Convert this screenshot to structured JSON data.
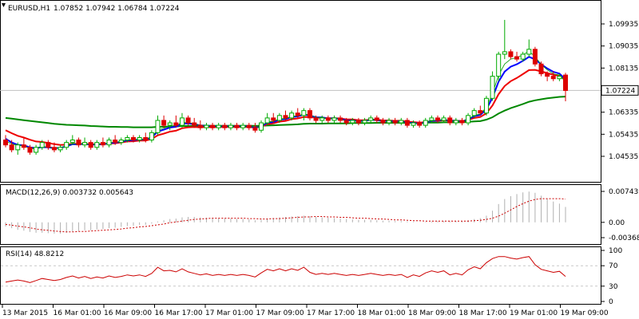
{
  "header": {
    "symbol": "EURUSD,H1",
    "ohlc": "1.07852 1.07942 1.06784 1.07224"
  },
  "price_axis": {
    "ticks": [
      "1.09935",
      "1.09035",
      "1.08135",
      "1.07224",
      "1.06335",
      "1.05435",
      "1.04535"
    ],
    "current_label": "1.07224"
  },
  "macd": {
    "label": "MACD(12,26,9) 0.003732 0.005643",
    "ticks": [
      "0.007439",
      "0.00",
      "-0.003682"
    ]
  },
  "rsi": {
    "label": "RSI(14) 48.8212",
    "ticks": [
      "100",
      "70",
      "30",
      "0"
    ]
  },
  "time_axis": {
    "labels": [
      "13 Mar 2015",
      "16 Mar 01:00",
      "16 Mar 09:00",
      "16 Mar 17:00",
      "17 Mar 01:00",
      "17 Mar 09:00",
      "17 Mar 17:00",
      "18 Mar 01:00",
      "18 Mar 09:00",
      "18 Mar 17:00",
      "19 Mar 01:00",
      "19 Mar 09:00"
    ]
  },
  "colors": {
    "bull": "#00aa00",
    "bear": "#dd0000",
    "ma_fast": "#0000ff",
    "ma_mid": "#ee0000",
    "ma_slow": "#008800",
    "ma_thin": "#009900",
    "rsi_line": "#cc0000",
    "macd_signal": "#cc0000",
    "macd_hist": "#b0b0b0",
    "grid": "#c8c8c8"
  },
  "chart_data": {
    "type": "candlestick",
    "symbol": "EURUSD",
    "timeframe": "H1",
    "price_range": [
      1.0445,
      1.1035
    ],
    "candles": [
      [
        1.052,
        1.054,
        1.049,
        1.05
      ],
      [
        1.05,
        1.052,
        1.047,
        1.048
      ],
      [
        1.048,
        1.051,
        1.046,
        1.05
      ],
      [
        1.05,
        1.053,
        1.048,
        1.049
      ],
      [
        1.049,
        1.05,
        1.046,
        1.047
      ],
      [
        1.047,
        1.05,
        1.046,
        1.049
      ],
      [
        1.049,
        1.052,
        1.048,
        1.051
      ],
      [
        1.051,
        1.052,
        1.048,
        1.049
      ],
      [
        1.049,
        1.051,
        1.047,
        1.048
      ],
      [
        1.048,
        1.05,
        1.047,
        1.049
      ],
      [
        1.049,
        1.052,
        1.048,
        1.051
      ],
      [
        1.051,
        1.054,
        1.05,
        1.052
      ],
      [
        1.052,
        1.053,
        1.049,
        1.05
      ],
      [
        1.05,
        1.053,
        1.049,
        1.051
      ],
      [
        1.051,
        1.052,
        1.048,
        1.049
      ],
      [
        1.049,
        1.052,
        1.048,
        1.051
      ],
      [
        1.051,
        1.053,
        1.049,
        1.05
      ],
      [
        1.05,
        1.053,
        1.049,
        1.052
      ],
      [
        1.052,
        1.054,
        1.05,
        1.051
      ],
      [
        1.051,
        1.053,
        1.05,
        1.052
      ],
      [
        1.052,
        1.054,
        1.051,
        1.053
      ],
      [
        1.053,
        1.054,
        1.051,
        1.052
      ],
      [
        1.052,
        1.054,
        1.051,
        1.053
      ],
      [
        1.053,
        1.055,
        1.051,
        1.052
      ],
      [
        1.052,
        1.056,
        1.051,
        1.055
      ],
      [
        1.055,
        1.062,
        1.054,
        1.06
      ],
      [
        1.06,
        1.062,
        1.057,
        1.058
      ],
      [
        1.058,
        1.06,
        1.056,
        1.059
      ],
      [
        1.059,
        1.062,
        1.057,
        1.058
      ],
      [
        1.058,
        1.063,
        1.057,
        1.061
      ],
      [
        1.061,
        1.062,
        1.058,
        1.059
      ],
      [
        1.059,
        1.061,
        1.057,
        1.058
      ],
      [
        1.058,
        1.06,
        1.056,
        1.057
      ],
      [
        1.057,
        1.059,
        1.056,
        1.058
      ],
      [
        1.058,
        1.059,
        1.056,
        1.057
      ],
      [
        1.057,
        1.059,
        1.056,
        1.058
      ],
      [
        1.058,
        1.059,
        1.056,
        1.057
      ],
      [
        1.057,
        1.059,
        1.056,
        1.058
      ],
      [
        1.058,
        1.059,
        1.056,
        1.057
      ],
      [
        1.057,
        1.059,
        1.056,
        1.058
      ],
      [
        1.058,
        1.059,
        1.056,
        1.057
      ],
      [
        1.057,
        1.059,
        1.055,
        1.056
      ],
      [
        1.056,
        1.06,
        1.055,
        1.059
      ],
      [
        1.059,
        1.063,
        1.058,
        1.061
      ],
      [
        1.061,
        1.063,
        1.059,
        1.06
      ],
      [
        1.06,
        1.063,
        1.059,
        1.062
      ],
      [
        1.062,
        1.064,
        1.06,
        1.061
      ],
      [
        1.061,
        1.064,
        1.06,
        1.063
      ],
      [
        1.063,
        1.065,
        1.061,
        1.062
      ],
      [
        1.062,
        1.065,
        1.06,
        1.064
      ],
      [
        1.064,
        1.065,
        1.06,
        1.061
      ],
      [
        1.061,
        1.062,
        1.059,
        1.06
      ],
      [
        1.06,
        1.062,
        1.059,
        1.061
      ],
      [
        1.061,
        1.062,
        1.059,
        1.06
      ],
      [
        1.06,
        1.062,
        1.059,
        1.061
      ],
      [
        1.061,
        1.062,
        1.059,
        1.06
      ],
      [
        1.06,
        1.061,
        1.058,
        1.059
      ],
      [
        1.059,
        1.061,
        1.058,
        1.06
      ],
      [
        1.06,
        1.061,
        1.058,
        1.059
      ],
      [
        1.059,
        1.061,
        1.058,
        1.06
      ],
      [
        1.06,
        1.062,
        1.059,
        1.061
      ],
      [
        1.061,
        1.062,
        1.059,
        1.06
      ],
      [
        1.06,
        1.061,
        1.058,
        1.059
      ],
      [
        1.059,
        1.061,
        1.058,
        1.06
      ],
      [
        1.06,
        1.061,
        1.058,
        1.059
      ],
      [
        1.059,
        1.061,
        1.058,
        1.06
      ],
      [
        1.06,
        1.061,
        1.057,
        1.058
      ],
      [
        1.058,
        1.06,
        1.057,
        1.059
      ],
      [
        1.059,
        1.06,
        1.057,
        1.058
      ],
      [
        1.058,
        1.061,
        1.057,
        1.06
      ],
      [
        1.06,
        1.062,
        1.059,
        1.061
      ],
      [
        1.061,
        1.062,
        1.059,
        1.06
      ],
      [
        1.06,
        1.062,
        1.059,
        1.061
      ],
      [
        1.061,
        1.062,
        1.058,
        1.059
      ],
      [
        1.059,
        1.061,
        1.058,
        1.06
      ],
      [
        1.06,
        1.061,
        1.058,
        1.059
      ],
      [
        1.059,
        1.063,
        1.058,
        1.062
      ],
      [
        1.062,
        1.065,
        1.061,
        1.064
      ],
      [
        1.064,
        1.066,
        1.062,
        1.063
      ],
      [
        1.063,
        1.07,
        1.062,
        1.069
      ],
      [
        1.069,
        1.08,
        1.068,
        1.078
      ],
      [
        1.078,
        1.088,
        1.076,
        1.087
      ],
      [
        1.087,
        1.101,
        1.085,
        1.088
      ],
      [
        1.088,
        1.089,
        1.085,
        1.086
      ],
      [
        1.086,
        1.088,
        1.084,
        1.085
      ],
      [
        1.085,
        1.088,
        1.084,
        1.087
      ],
      [
        1.087,
        1.093,
        1.086,
        1.089
      ],
      [
        1.089,
        1.09,
        1.082,
        1.083
      ],
      [
        1.083,
        1.084,
        1.078,
        1.079
      ],
      [
        1.079,
        1.08,
        1.076,
        1.078
      ],
      [
        1.078,
        1.08,
        1.076,
        1.077
      ],
      [
        1.077,
        1.079,
        1.076,
        1.078
      ],
      [
        1.0785,
        1.0794,
        1.0678,
        1.0722
      ]
    ],
    "ma_fast": [
      1.0525,
      1.051,
      1.05,
      1.0498,
      1.049,
      1.0487,
      1.0491,
      1.049,
      1.0487,
      1.0488,
      1.0494,
      1.0503,
      1.0502,
      1.0505,
      1.05,
      1.0503,
      1.0502,
      1.0508,
      1.0509,
      1.0513,
      1.0519,
      1.0519,
      1.0523,
      1.0521,
      1.0531,
      1.0554,
      1.0562,
      1.0571,
      1.0574,
      1.0586,
      1.0588,
      1.0585,
      1.0579,
      1.0579,
      1.0576,
      1.0577,
      1.0575,
      1.0577,
      1.0575,
      1.0577,
      1.0575,
      1.0569,
      1.0576,
      1.059,
      1.0593,
      1.0603,
      1.0605,
      1.0614,
      1.0616,
      1.0624,
      1.062,
      1.0613,
      1.0612,
      1.0608,
      1.0609,
      1.0606,
      1.06,
      1.06,
      1.0597,
      1.0598,
      1.0602,
      1.0601,
      1.0597,
      1.0598,
      1.0595,
      1.0597,
      1.059,
      1.059,
      1.0587,
      1.0591,
      1.0598,
      1.0599,
      1.0603,
      1.0598,
      1.0599,
      1.0596,
      1.0604,
      1.0617,
      1.0622,
      1.0645,
      1.0693,
      1.0758,
      1.0799,
      1.0819,
      1.0829,
      1.0843,
      1.0859,
      1.0849,
      1.0829,
      1.0812,
      1.0798,
      1.0791,
      1.0768
    ],
    "ma_mid": [
      1.056,
      1.0548,
      1.0537,
      1.053,
      1.0521,
      1.0514,
      1.0512,
      1.0508,
      1.0503,
      1.05,
      1.0501,
      1.0505,
      1.0504,
      1.0505,
      1.0502,
      1.0503,
      1.0503,
      1.0506,
      1.0507,
      1.051,
      1.0514,
      1.0515,
      1.0518,
      1.0518,
      1.0524,
      1.0539,
      1.0546,
      1.0554,
      1.0558,
      1.0568,
      1.0572,
      1.0573,
      1.0572,
      1.0573,
      1.0572,
      1.0573,
      1.0573,
      1.0574,
      1.0573,
      1.0574,
      1.0573,
      1.0571,
      1.0575,
      1.0584,
      1.0588,
      1.0595,
      1.0598,
      1.0605,
      1.0608,
      1.0614,
      1.0614,
      1.0611,
      1.0611,
      1.0609,
      1.0609,
      1.0608,
      1.0604,
      1.0604,
      1.0601,
      1.0601,
      1.0603,
      1.0603,
      1.06,
      1.06,
      1.0598,
      1.0599,
      1.0594,
      1.0593,
      1.0591,
      1.0593,
      1.0597,
      1.0598,
      1.0601,
      1.0599,
      1.0599,
      1.0597,
      1.0602,
      1.061,
      1.0614,
      1.0629,
      1.0661,
      1.0707,
      1.074,
      1.076,
      1.0773,
      1.0789,
      1.0805,
      1.0806,
      1.08,
      1.0793,
      1.0786,
      1.0782,
      1.0768
    ],
    "ma_slow": [
      1.061,
      1.0607,
      1.0604,
      1.0601,
      1.0598,
      1.0595,
      1.0592,
      1.0589,
      1.0586,
      1.0584,
      1.0582,
      1.0581,
      1.058,
      1.0579,
      1.0577,
      1.0576,
      1.0575,
      1.0574,
      1.0574,
      1.0573,
      1.0573,
      1.0572,
      1.0572,
      1.0572,
      1.0572,
      1.0574,
      1.0574,
      1.0575,
      1.0575,
      1.0577,
      1.0577,
      1.0578,
      1.0578,
      1.0578,
      1.0578,
      1.0578,
      1.0578,
      1.0578,
      1.0578,
      1.0578,
      1.0578,
      1.0578,
      1.0578,
      1.0579,
      1.058,
      1.0581,
      1.0582,
      1.0583,
      1.0584,
      1.0586,
      1.0587,
      1.0587,
      1.0587,
      1.0588,
      1.0588,
      1.0588,
      1.0588,
      1.0589,
      1.0589,
      1.0589,
      1.0589,
      1.059,
      1.059,
      1.059,
      1.059,
      1.059,
      1.059,
      1.059,
      1.059,
      1.0591,
      1.0591,
      1.0591,
      1.0592,
      1.0592,
      1.0592,
      1.0593,
      1.0594,
      1.0596,
      1.0597,
      1.0603,
      1.0613,
      1.0628,
      1.064,
      1.065,
      1.0658,
      1.0667,
      1.0676,
      1.0682,
      1.0686,
      1.069,
      1.0693,
      1.0696,
      1.0697
    ],
    "ma_thin": [
      1.0515,
      1.0505,
      1.0497,
      1.0496,
      1.0485,
      1.0485,
      1.0493,
      1.0491,
      1.0486,
      1.0488,
      1.0496,
      1.0506,
      1.0503,
      1.0507,
      1.05,
      1.0505,
      1.0503,
      1.051,
      1.051,
      1.0514,
      1.0521,
      1.052,
      1.0525,
      1.0522,
      1.0534,
      1.0561,
      1.0568,
      1.0577,
      1.0579,
      1.0591,
      1.0591,
      1.0587,
      1.058,
      1.058,
      1.0576,
      1.0578,
      1.0575,
      1.0577,
      1.0575,
      1.0577,
      1.0575,
      1.0568,
      1.0577,
      1.0594,
      1.0596,
      1.0607,
      1.0607,
      1.0617,
      1.0618,
      1.0627,
      1.0621,
      1.0613,
      1.0612,
      1.0607,
      1.0609,
      1.0605,
      1.0599,
      1.06,
      1.0596,
      1.0598,
      1.0603,
      1.0601,
      1.0597,
      1.0598,
      1.0594,
      1.0597,
      1.0589,
      1.059,
      1.0586,
      1.0591,
      1.0599,
      1.06,
      1.0604,
      1.0597,
      1.0599,
      1.0595,
      1.0605,
      1.0621,
      1.0626,
      1.0653,
      1.071,
      1.0784,
      1.083,
      1.085,
      1.0856,
      1.0868,
      1.0882,
      1.086,
      1.0828,
      1.0806,
      1.079,
      1.0785,
      1.0757
    ],
    "macd": {
      "range": [
        -0.003682,
        0.007439
      ],
      "histogram": [
        -0.001,
        -0.0014,
        -0.0018,
        -0.002,
        -0.0023,
        -0.0025,
        -0.0025,
        -0.0026,
        -0.0027,
        -0.0027,
        -0.0025,
        -0.0022,
        -0.0021,
        -0.0019,
        -0.0019,
        -0.0017,
        -0.0016,
        -0.0014,
        -0.0013,
        -0.0011,
        -0.0009,
        -0.0008,
        -0.0006,
        -0.0006,
        -0.0003,
        0.0002,
        0.0005,
        0.0008,
        0.0009,
        0.0012,
        0.0013,
        0.0013,
        0.0012,
        0.0011,
        0.001,
        0.001,
        0.0009,
        0.0009,
        0.0008,
        0.0008,
        0.0007,
        0.0005,
        0.0006,
        0.0009,
        0.001,
        0.0012,
        0.0013,
        0.0014,
        0.0015,
        0.0016,
        0.0015,
        0.0013,
        0.0012,
        0.0011,
        0.001,
        0.0009,
        0.0008,
        0.0007,
        0.0006,
        0.0006,
        0.0006,
        0.0005,
        0.0004,
        0.0004,
        0.0003,
        0.0003,
        0.0002,
        0.0001,
        0.0,
        0.0001,
        0.0002,
        0.0003,
        0.0003,
        0.0003,
        0.0003,
        0.0003,
        0.0005,
        0.0008,
        0.001,
        0.0016,
        0.0028,
        0.0044,
        0.0056,
        0.0063,
        0.0068,
        0.0072,
        0.0074,
        0.0071,
        0.0064,
        0.0056,
        0.005,
        0.0045,
        0.0037
      ],
      "signal": [
        -0.0005,
        -0.0007,
        -0.0009,
        -0.0011,
        -0.0013,
        -0.0016,
        -0.0018,
        -0.0019,
        -0.0021,
        -0.0022,
        -0.0023,
        -0.0023,
        -0.0022,
        -0.0022,
        -0.0021,
        -0.002,
        -0.0019,
        -0.0018,
        -0.0017,
        -0.0016,
        -0.0014,
        -0.0013,
        -0.0011,
        -0.001,
        -0.0008,
        -0.0006,
        -0.0004,
        -0.0001,
        0.0001,
        0.0003,
        0.0005,
        0.0007,
        0.0008,
        0.0009,
        0.001,
        0.001,
        0.001,
        0.001,
        0.001,
        0.001,
        0.0009,
        0.0009,
        0.0008,
        0.0008,
        0.0009,
        0.0009,
        0.001,
        0.0011,
        0.0012,
        0.0013,
        0.0013,
        0.0014,
        0.0014,
        0.0013,
        0.0013,
        0.0012,
        0.0012,
        0.0011,
        0.001,
        0.001,
        0.0009,
        0.0008,
        0.0008,
        0.0007,
        0.0006,
        0.0006,
        0.0005,
        0.0004,
        0.0004,
        0.0003,
        0.0003,
        0.0003,
        0.0003,
        0.0003,
        0.0003,
        0.0003,
        0.0003,
        0.0004,
        0.0005,
        0.0007,
        0.001,
        0.0015,
        0.0022,
        0.003,
        0.0038,
        0.0045,
        0.0051,
        0.0055,
        0.0057,
        0.0057,
        0.0057,
        0.0057,
        0.0056
      ]
    },
    "rsi": {
      "range": [
        0,
        100
      ],
      "levels": [
        70,
        30
      ],
      "values": [
        38,
        40,
        42,
        40,
        37,
        41,
        45,
        43,
        41,
        43,
        47,
        50,
        46,
        49,
        45,
        48,
        46,
        50,
        47,
        49,
        52,
        50,
        52,
        49,
        55,
        67,
        60,
        61,
        58,
        64,
        58,
        55,
        52,
        54,
        51,
        53,
        51,
        53,
        51,
        53,
        51,
        48,
        56,
        63,
        60,
        64,
        60,
        64,
        61,
        67,
        57,
        53,
        55,
        53,
        55,
        53,
        51,
        53,
        51,
        53,
        55,
        53,
        51,
        53,
        51,
        53,
        47,
        52,
        49,
        56,
        60,
        57,
        60,
        52,
        55,
        52,
        62,
        68,
        64,
        76,
        84,
        88,
        88,
        85,
        83,
        86,
        88,
        72,
        63,
        60,
        57,
        59,
        49
      ]
    }
  }
}
